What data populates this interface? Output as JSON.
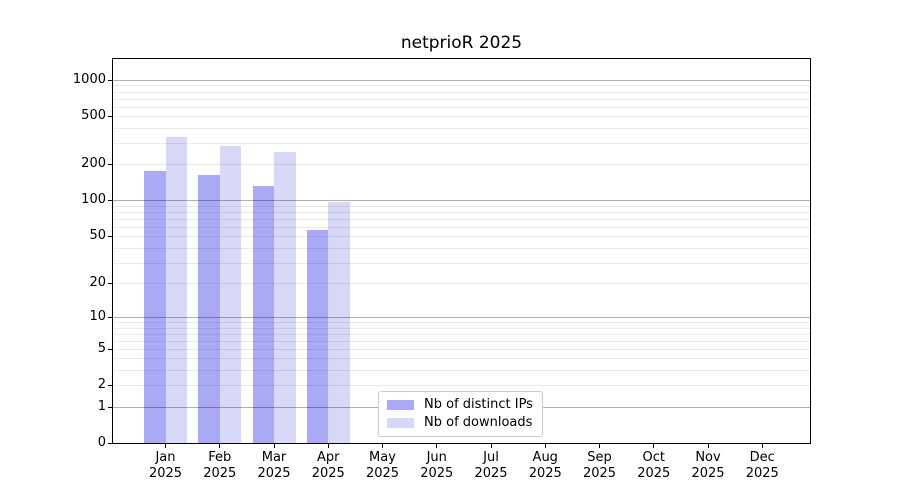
{
  "chart_data": {
    "type": "bar",
    "title": "netprioR 2025",
    "categories": [
      "Jan 2025",
      "Feb 2025",
      "Mar 2025",
      "Apr 2025",
      "May 2025",
      "Jun 2025",
      "Jul 2025",
      "Aug 2025",
      "Sep 2025",
      "Oct 2025",
      "Nov 2025",
      "Dec 2025"
    ],
    "series": [
      {
        "name": "Nb of distinct IPs",
        "color": "#a9a9f5",
        "values": [
          175,
          164,
          133,
          57,
          null,
          null,
          null,
          null,
          null,
          null,
          null,
          null
        ]
      },
      {
        "name": "Nb of downloads",
        "color": "#d8d8f8",
        "values": [
          340,
          283,
          252,
          97,
          null,
          null,
          null,
          null,
          null,
          null,
          null,
          null
        ]
      }
    ],
    "xlabel": "",
    "ylabel": "",
    "y_scale": "log1p",
    "y_ticks": [
      0,
      1,
      2,
      5,
      10,
      20,
      50,
      100,
      200,
      500,
      1000
    ],
    "y_major_gridlines": [
      1,
      10,
      100,
      1000
    ],
    "ylim": [
      0,
      1490
    ],
    "grid": "both",
    "legend_position": "inside lower center"
  },
  "colors": {
    "bar_ips": "#a9a9f5",
    "bar_downloads": "#d8d8f8",
    "grid_major": "rgba(0,0,0,0.31)",
    "grid_minor": "rgba(0,0,0,0.08)",
    "axis_line": "#000000",
    "text": "#000000",
    "legend_border": "#cccccc"
  }
}
